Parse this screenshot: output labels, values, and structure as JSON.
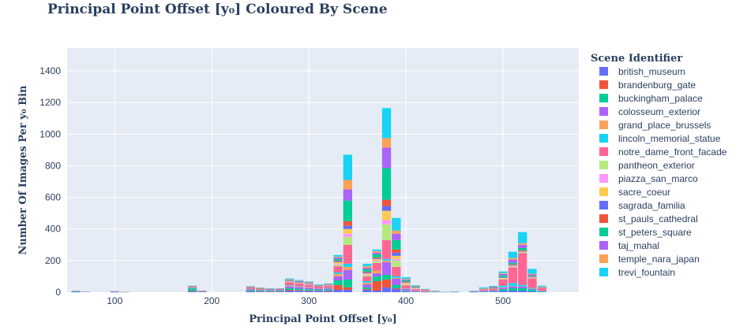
{
  "chart_data": {
    "type": "bar",
    "stacked": true,
    "title": "Principal Point Offset [y₀] Coloured By Scene",
    "xlabel": "Principal Point Offset [y₀]",
    "ylabel": "Number Of Images Per y₀ Bin",
    "xlim": [
      51,
      578
    ],
    "ylim": [
      0,
      1545
    ],
    "xticks": [
      100,
      200,
      300,
      400,
      500
    ],
    "yticks": [
      0,
      200,
      400,
      600,
      800,
      1000,
      1200,
      1400
    ],
    "grid": true,
    "legend_title": "Scene Identifier",
    "legend_position": "right",
    "bin_width": 10,
    "x": [
      60,
      70,
      90,
      100,
      110,
      120,
      130,
      180,
      190,
      200,
      210,
      240,
      250,
      260,
      270,
      280,
      290,
      300,
      310,
      320,
      330,
      340,
      350,
      360,
      370,
      380,
      390,
      400,
      410,
      420,
      430,
      440,
      450,
      470,
      480,
      490,
      500,
      510,
      520,
      530,
      540
    ],
    "series": [
      {
        "name": "british_museum",
        "color": "#636efa",
        "values": [
          1,
          0,
          0,
          1,
          0,
          0,
          0,
          5,
          2,
          0,
          0,
          5,
          4,
          3,
          3,
          10,
          9,
          8,
          7,
          8,
          15,
          15,
          0,
          15,
          10,
          30,
          20,
          5,
          2,
          1,
          0,
          0,
          0,
          1,
          3,
          3,
          8,
          10,
          10,
          5,
          2
        ]
      },
      {
        "name": "brandenburg_gate",
        "color": "#EF553B",
        "values": [
          0,
          0,
          0,
          0,
          0,
          0,
          0,
          3,
          1,
          0,
          0,
          2,
          2,
          1,
          2,
          5,
          4,
          3,
          2,
          3,
          30,
          15,
          0,
          5,
          60,
          50,
          5,
          1,
          0,
          0,
          0,
          0,
          0,
          0,
          0,
          0,
          0,
          0,
          0,
          0,
          0
        ]
      },
      {
        "name": "buckingham_palace",
        "color": "#00cc96",
        "values": [
          5,
          2,
          0,
          3,
          1,
          0,
          0,
          15,
          4,
          0,
          0,
          6,
          4,
          4,
          4,
          10,
          9,
          8,
          6,
          7,
          30,
          50,
          0,
          10,
          30,
          30,
          20,
          5,
          2,
          1,
          0,
          0,
          1,
          2,
          3,
          4,
          10,
          15,
          15,
          10,
          3
        ]
      },
      {
        "name": "colosseum_exterior",
        "color": "#ab63fa",
        "values": [
          1,
          1,
          0,
          1,
          0,
          0,
          0,
          3,
          1,
          0,
          0,
          5,
          4,
          4,
          4,
          10,
          10,
          8,
          6,
          6,
          25,
          60,
          0,
          20,
          20,
          80,
          40,
          10,
          5,
          2,
          1,
          1,
          1,
          2,
          3,
          3,
          10,
          10,
          10,
          5,
          2
        ]
      },
      {
        "name": "grand_place_brussels",
        "color": "#FFA15A",
        "values": [
          0,
          0,
          0,
          0,
          0,
          0,
          0,
          1,
          0,
          0,
          0,
          1,
          1,
          0,
          1,
          4,
          2,
          2,
          1,
          2,
          15,
          20,
          0,
          10,
          15,
          10,
          5,
          1,
          0,
          0,
          0,
          0,
          0,
          0,
          0,
          0,
          3,
          3,
          2,
          2,
          0
        ]
      },
      {
        "name": "lincoln_memorial_statue",
        "color": "#19d3f3",
        "values": [
          0,
          0,
          0,
          0,
          0,
          0,
          0,
          1,
          0,
          0,
          0,
          1,
          1,
          1,
          1,
          5,
          3,
          2,
          1,
          1,
          10,
          20,
          0,
          10,
          0,
          10,
          10,
          2,
          0,
          0,
          0,
          0,
          0,
          0,
          0,
          0,
          10,
          20,
          10,
          5,
          2
        ]
      },
      {
        "name": "notre_dame_front_facade",
        "color": "#FF6692",
        "values": [
          2,
          0,
          0,
          2,
          1,
          0,
          0,
          5,
          2,
          0,
          0,
          8,
          6,
          5,
          5,
          20,
          18,
          16,
          14,
          14,
          40,
          120,
          0,
          30,
          50,
          120,
          60,
          20,
          10,
          5,
          3,
          1,
          1,
          2,
          10,
          12,
          40,
          100,
          200,
          60,
          20
        ]
      },
      {
        "name": "pantheon_exterior",
        "color": "#B6E880",
        "values": [
          0,
          0,
          0,
          0,
          0,
          0,
          0,
          1,
          0,
          0,
          0,
          1,
          0,
          0,
          0,
          2,
          2,
          2,
          1,
          2,
          10,
          50,
          0,
          10,
          10,
          100,
          40,
          8,
          4,
          2,
          1,
          0,
          0,
          0,
          2,
          2,
          5,
          5,
          5,
          3,
          1
        ]
      },
      {
        "name": "piazza_san_marco",
        "color": "#FF97FF",
        "values": [
          0,
          0,
          0,
          0,
          0,
          0,
          0,
          0,
          0,
          0,
          0,
          0,
          0,
          0,
          0,
          1,
          1,
          1,
          0,
          1,
          5,
          20,
          0,
          5,
          5,
          25,
          10,
          3,
          2,
          1,
          0,
          0,
          0,
          0,
          0,
          0,
          2,
          3,
          2,
          2,
          0
        ]
      },
      {
        "name": "sacre_coeur",
        "color": "#FECB52",
        "values": [
          0,
          0,
          0,
          0,
          0,
          0,
          0,
          1,
          0,
          0,
          0,
          1,
          1,
          1,
          0,
          2,
          2,
          2,
          1,
          1,
          10,
          30,
          0,
          5,
          10,
          60,
          20,
          5,
          2,
          1,
          0,
          0,
          0,
          0,
          0,
          1,
          2,
          2,
          3,
          2,
          0
        ]
      },
      {
        "name": "sagrada_familia",
        "color": "#636efa",
        "values": [
          0,
          0,
          0,
          0,
          0,
          0,
          0,
          1,
          0,
          0,
          0,
          1,
          1,
          1,
          0,
          2,
          2,
          2,
          1,
          1,
          5,
          20,
          0,
          5,
          5,
          30,
          20,
          4,
          2,
          1,
          0,
          0,
          0,
          0,
          0,
          1,
          3,
          3,
          3,
          2,
          0
        ]
      },
      {
        "name": "st_pauls_cathedral",
        "color": "#EF553B",
        "values": [
          0,
          0,
          0,
          0,
          0,
          0,
          0,
          1,
          0,
          0,
          0,
          1,
          1,
          0,
          0,
          2,
          2,
          2,
          1,
          1,
          5,
          30,
          0,
          5,
          5,
          40,
          20,
          4,
          2,
          1,
          0,
          0,
          0,
          0,
          0,
          1,
          3,
          5,
          5,
          3,
          0
        ]
      },
      {
        "name": "st_peters_square",
        "color": "#00cc96",
        "values": [
          0,
          0,
          0,
          0,
          0,
          0,
          0,
          1,
          0,
          0,
          0,
          2,
          1,
          1,
          1,
          3,
          3,
          3,
          2,
          2,
          10,
          130,
          0,
          15,
          20,
          200,
          60,
          8,
          4,
          2,
          1,
          0,
          0,
          0,
          2,
          3,
          10,
          10,
          15,
          5,
          2
        ]
      },
      {
        "name": "taj_mahal",
        "color": "#ab63fa",
        "values": [
          0,
          0,
          0,
          0,
          0,
          0,
          0,
          1,
          0,
          0,
          0,
          1,
          1,
          1,
          1,
          3,
          3,
          3,
          2,
          2,
          10,
          70,
          0,
          10,
          10,
          130,
          40,
          5,
          3,
          1,
          1,
          0,
          0,
          0,
          2,
          3,
          10,
          20,
          20,
          8,
          2
        ]
      },
      {
        "name": "temple_nara_japan",
        "color": "#FFA15A",
        "values": [
          0,
          0,
          0,
          0,
          0,
          0,
          0,
          1,
          0,
          0,
          0,
          1,
          1,
          1,
          1,
          3,
          3,
          3,
          2,
          2,
          5,
          60,
          0,
          10,
          10,
          60,
          20,
          4,
          2,
          1,
          1,
          0,
          0,
          0,
          1,
          2,
          5,
          10,
          10,
          5,
          2
        ]
      },
      {
        "name": "trevi_fountain",
        "color": "#19d3f3",
        "values": [
          0,
          0,
          0,
          0,
          0,
          0,
          0,
          1,
          0,
          0,
          0,
          1,
          1,
          1,
          1,
          5,
          4,
          3,
          3,
          3,
          10,
          160,
          0,
          15,
          10,
          190,
          80,
          10,
          4,
          2,
          1,
          1,
          1,
          2,
          5,
          5,
          10,
          40,
          70,
          30,
          5
        ]
      }
    ]
  }
}
